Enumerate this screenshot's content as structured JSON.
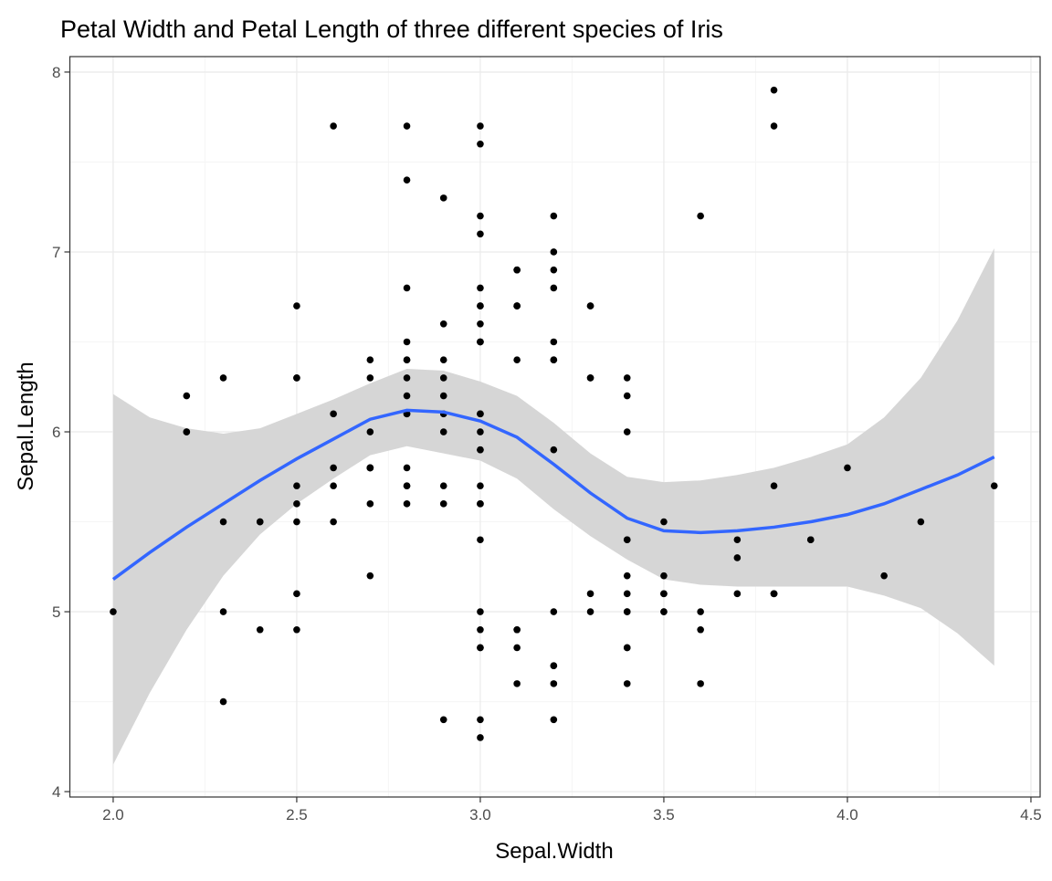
{
  "chart_data": {
    "type": "scatter",
    "title": "Petal Width and Petal Length of three different species of Iris",
    "xlabel": "Sepal.Width",
    "ylabel": "Sepal.Length",
    "xlim": [
      1.882,
      4.525
    ],
    "ylim": [
      3.97,
      8.086
    ],
    "x_ticks": [
      2.0,
      2.5,
      3.0,
      3.5,
      4.0,
      4.5
    ],
    "x_tick_labels": [
      "2.0",
      "2.5",
      "3.0",
      "3.5",
      "4.0",
      "4.5"
    ],
    "y_ticks": [
      4,
      5,
      6,
      7,
      8
    ],
    "y_tick_labels": [
      "4",
      "5",
      "6",
      "7",
      "8"
    ],
    "grid": true,
    "colors": {
      "points": "#000000",
      "smooth": "#3366FF",
      "ribbon": "#D6D6D6",
      "grid_major": "#EBEBEB",
      "grid_minor": "#F5F5F5",
      "panel_border": "#333333"
    },
    "points": [
      [
        3.5,
        5.1
      ],
      [
        3.0,
        4.9
      ],
      [
        3.2,
        4.7
      ],
      [
        3.1,
        4.6
      ],
      [
        3.6,
        5.0
      ],
      [
        3.9,
        5.4
      ],
      [
        3.4,
        4.6
      ],
      [
        3.4,
        5.0
      ],
      [
        2.9,
        4.4
      ],
      [
        3.1,
        4.9
      ],
      [
        3.7,
        5.4
      ],
      [
        3.4,
        4.8
      ],
      [
        3.0,
        4.8
      ],
      [
        3.0,
        4.3
      ],
      [
        4.0,
        5.8
      ],
      [
        4.4,
        5.7
      ],
      [
        3.9,
        5.4
      ],
      [
        3.5,
        5.1
      ],
      [
        3.8,
        5.7
      ],
      [
        3.8,
        5.1
      ],
      [
        3.4,
        5.4
      ],
      [
        3.7,
        5.1
      ],
      [
        3.6,
        4.6
      ],
      [
        3.3,
        5.1
      ],
      [
        3.4,
        4.8
      ],
      [
        3.0,
        5.0
      ],
      [
        3.4,
        5.0
      ],
      [
        3.5,
        5.2
      ],
      [
        3.4,
        5.2
      ],
      [
        3.2,
        4.7
      ],
      [
        3.1,
        4.8
      ],
      [
        3.4,
        5.4
      ],
      [
        4.1,
        5.2
      ],
      [
        4.2,
        5.5
      ],
      [
        3.1,
        4.9
      ],
      [
        3.2,
        5.0
      ],
      [
        3.5,
        5.5
      ],
      [
        3.6,
        4.9
      ],
      [
        3.0,
        4.4
      ],
      [
        3.4,
        5.1
      ],
      [
        3.5,
        5.0
      ],
      [
        2.3,
        4.5
      ],
      [
        3.2,
        4.4
      ],
      [
        3.5,
        5.0
      ],
      [
        3.8,
        5.1
      ],
      [
        3.0,
        4.8
      ],
      [
        3.8,
        5.1
      ],
      [
        3.2,
        4.6
      ],
      [
        3.7,
        5.3
      ],
      [
        3.3,
        5.0
      ],
      [
        3.2,
        7.0
      ],
      [
        3.2,
        6.4
      ],
      [
        3.1,
        6.9
      ],
      [
        2.3,
        5.5
      ],
      [
        2.8,
        6.5
      ],
      [
        2.8,
        5.7
      ],
      [
        3.3,
        6.3
      ],
      [
        2.4,
        4.9
      ],
      [
        2.9,
        6.6
      ],
      [
        2.7,
        5.2
      ],
      [
        2.0,
        5.0
      ],
      [
        3.0,
        5.9
      ],
      [
        2.2,
        6.0
      ],
      [
        2.9,
        6.1
      ],
      [
        2.9,
        5.6
      ],
      [
        3.1,
        6.7
      ],
      [
        3.0,
        5.6
      ],
      [
        2.7,
        5.8
      ],
      [
        2.2,
        6.2
      ],
      [
        2.5,
        5.6
      ],
      [
        3.2,
        5.9
      ],
      [
        2.8,
        6.1
      ],
      [
        2.5,
        6.3
      ],
      [
        2.8,
        6.1
      ],
      [
        2.9,
        6.4
      ],
      [
        3.0,
        6.6
      ],
      [
        2.8,
        6.8
      ],
      [
        3.0,
        6.7
      ],
      [
        2.9,
        6.0
      ],
      [
        2.6,
        5.7
      ],
      [
        2.4,
        5.5
      ],
      [
        2.4,
        5.5
      ],
      [
        2.7,
        5.8
      ],
      [
        2.7,
        6.0
      ],
      [
        3.0,
        5.4
      ],
      [
        3.4,
        6.0
      ],
      [
        3.1,
        6.7
      ],
      [
        2.3,
        6.3
      ],
      [
        3.0,
        5.6
      ],
      [
        2.5,
        5.5
      ],
      [
        2.6,
        5.5
      ],
      [
        3.0,
        6.1
      ],
      [
        2.6,
        5.8
      ],
      [
        2.3,
        5.0
      ],
      [
        2.7,
        5.6
      ],
      [
        3.0,
        5.7
      ],
      [
        2.9,
        5.7
      ],
      [
        2.9,
        6.2
      ],
      [
        2.5,
        5.1
      ],
      [
        2.8,
        5.7
      ],
      [
        3.3,
        6.3
      ],
      [
        2.7,
        5.8
      ],
      [
        3.0,
        7.1
      ],
      [
        2.9,
        6.3
      ],
      [
        3.0,
        6.5
      ],
      [
        3.0,
        7.6
      ],
      [
        2.5,
        4.9
      ],
      [
        2.9,
        7.3
      ],
      [
        2.5,
        6.7
      ],
      [
        3.6,
        7.2
      ],
      [
        3.2,
        6.5
      ],
      [
        2.7,
        6.4
      ],
      [
        3.0,
        6.8
      ],
      [
        2.5,
        5.7
      ],
      [
        2.8,
        5.8
      ],
      [
        3.2,
        6.4
      ],
      [
        3.0,
        6.5
      ],
      [
        3.8,
        7.7
      ],
      [
        2.6,
        7.7
      ],
      [
        2.2,
        6.0
      ],
      [
        3.2,
        6.9
      ],
      [
        2.8,
        5.6
      ],
      [
        2.8,
        7.7
      ],
      [
        2.7,
        6.3
      ],
      [
        3.3,
        6.7
      ],
      [
        3.2,
        7.2
      ],
      [
        2.8,
        6.2
      ],
      [
        3.0,
        6.1
      ],
      [
        2.8,
        6.4
      ],
      [
        3.0,
        7.2
      ],
      [
        2.8,
        7.4
      ],
      [
        3.8,
        7.9
      ],
      [
        2.8,
        6.4
      ],
      [
        2.8,
        6.3
      ],
      [
        2.6,
        6.1
      ],
      [
        3.0,
        7.7
      ],
      [
        3.4,
        6.3
      ],
      [
        3.1,
        6.4
      ],
      [
        3.0,
        6.0
      ],
      [
        3.1,
        6.9
      ],
      [
        3.1,
        6.7
      ],
      [
        3.1,
        6.9
      ],
      [
        2.7,
        5.8
      ],
      [
        3.2,
        6.8
      ],
      [
        3.3,
        6.7
      ],
      [
        3.0,
        6.7
      ],
      [
        2.5,
        6.3
      ],
      [
        3.0,
        6.5
      ],
      [
        3.4,
        6.2
      ],
      [
        3.0,
        5.9
      ]
    ],
    "smooth": {
      "method": "loess",
      "x": [
        2.0,
        2.1,
        2.2,
        2.3,
        2.4,
        2.5,
        2.6,
        2.7,
        2.8,
        2.9,
        3.0,
        3.1,
        3.2,
        3.3,
        3.4,
        3.5,
        3.6,
        3.7,
        3.8,
        3.9,
        4.0,
        4.1,
        4.2,
        4.3,
        4.4
      ],
      "y": [
        5.18,
        5.33,
        5.47,
        5.6,
        5.73,
        5.85,
        5.96,
        6.07,
        6.12,
        6.11,
        6.06,
        5.97,
        5.82,
        5.66,
        5.52,
        5.45,
        5.44,
        5.45,
        5.47,
        5.5,
        5.54,
        5.6,
        5.68,
        5.76,
        5.86
      ],
      "upper": [
        6.21,
        6.08,
        6.02,
        5.99,
        6.02,
        6.1,
        6.18,
        6.27,
        6.35,
        6.34,
        6.28,
        6.2,
        6.05,
        5.88,
        5.75,
        5.72,
        5.73,
        5.76,
        5.8,
        5.86,
        5.93,
        6.08,
        6.3,
        6.62,
        7.02
      ],
      "lower": [
        4.15,
        4.55,
        4.9,
        5.2,
        5.43,
        5.6,
        5.74,
        5.87,
        5.92,
        5.88,
        5.84,
        5.74,
        5.57,
        5.42,
        5.29,
        5.18,
        5.15,
        5.14,
        5.14,
        5.14,
        5.14,
        5.09,
        5.02,
        4.88,
        4.7
      ]
    }
  }
}
